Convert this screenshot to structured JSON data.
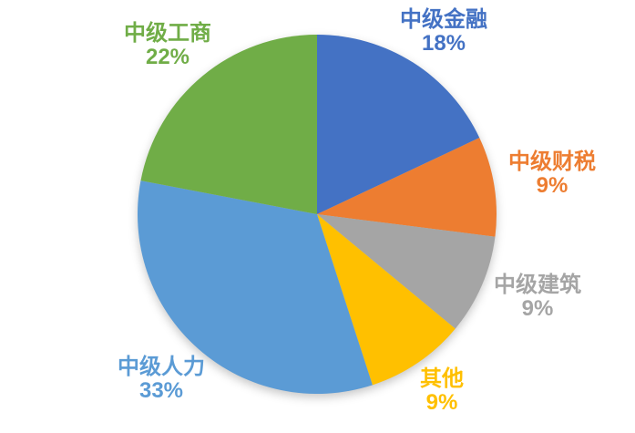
{
  "chart_data": {
    "type": "pie",
    "title": "",
    "legend_position": "none",
    "background": "#FFFFFF",
    "start_angle_deg": 0,
    "direction": "clockwise",
    "categories": [
      "中级金融",
      "中级财税",
      "中级建筑",
      "其他",
      "中级人力",
      "中级工商"
    ],
    "values": [
      18,
      9,
      9,
      9,
      33,
      22
    ],
    "slices": [
      {
        "label": "中级金融",
        "value": 18,
        "pct_label": "18%",
        "color": "#4472C4"
      },
      {
        "label": "中级财税",
        "value": 9,
        "pct_label": "9%",
        "color": "#ED7D31"
      },
      {
        "label": "中级建筑",
        "value": 9,
        "pct_label": "9%",
        "color": "#A5A5A5"
      },
      {
        "label": "其他",
        "value": 9,
        "pct_label": "9%",
        "color": "#FFC000"
      },
      {
        "label": "中级人力",
        "value": 33,
        "pct_label": "33%",
        "color": "#5B9BD5"
      },
      {
        "label": "中级工商",
        "value": 22,
        "pct_label": "22%",
        "color": "#70AD47"
      }
    ]
  }
}
